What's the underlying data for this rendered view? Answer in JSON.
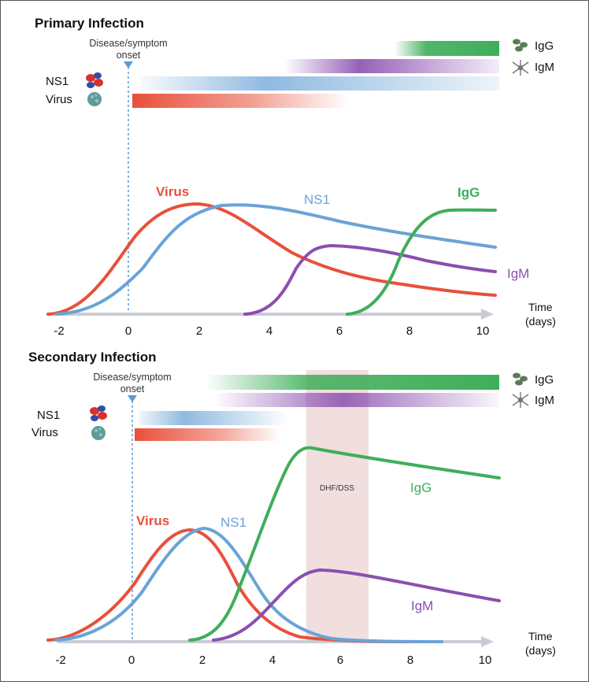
{
  "colors": {
    "virus": "#e8503a",
    "ns1": "#6aa3d6",
    "igm": "#8a4fb0",
    "igg": "#3fae5a",
    "axis": "#c9ccd4",
    "onset": "#5b9bd5",
    "dhf_band": "#ecd3d3"
  },
  "icons": {
    "ns1": "ns1-protein-icon",
    "virus": "virus-particle-icon",
    "igg": "igg-antibody-icon",
    "igm": "igm-antibody-icon"
  },
  "primary": {
    "title": "Primary Infection",
    "onset_label_1": "Disease/symptom",
    "onset_label_2": "onset",
    "legend": {
      "ns1": "NS1",
      "virus": "Virus",
      "igg": "IgG",
      "igm": "IgM"
    },
    "axis": {
      "ticks": [
        "-2",
        "0",
        "2",
        "4",
        "6",
        "8",
        "10"
      ],
      "label_1": "Time",
      "label_2": "(days)"
    },
    "curve_labels": {
      "virus": "Virus",
      "ns1": "NS1",
      "igg": "IgG",
      "igm": "IgM"
    }
  },
  "secondary": {
    "title": "Secondary Infection",
    "onset_label_1": "Disease/symptom",
    "onset_label_2": "onset",
    "legend": {
      "ns1": "NS1",
      "virus": "Virus",
      "igg": "IgG",
      "igm": "IgM"
    },
    "axis": {
      "ticks": [
        "-2",
        "0",
        "2",
        "4",
        "6",
        "8",
        "10"
      ],
      "label_1": "Time",
      "label_2": "(days)"
    },
    "curve_labels": {
      "virus": "Virus",
      "ns1": "NS1",
      "igg": "IgG",
      "igm": "IgM"
    },
    "band_label": "DHF/DSS"
  }
}
